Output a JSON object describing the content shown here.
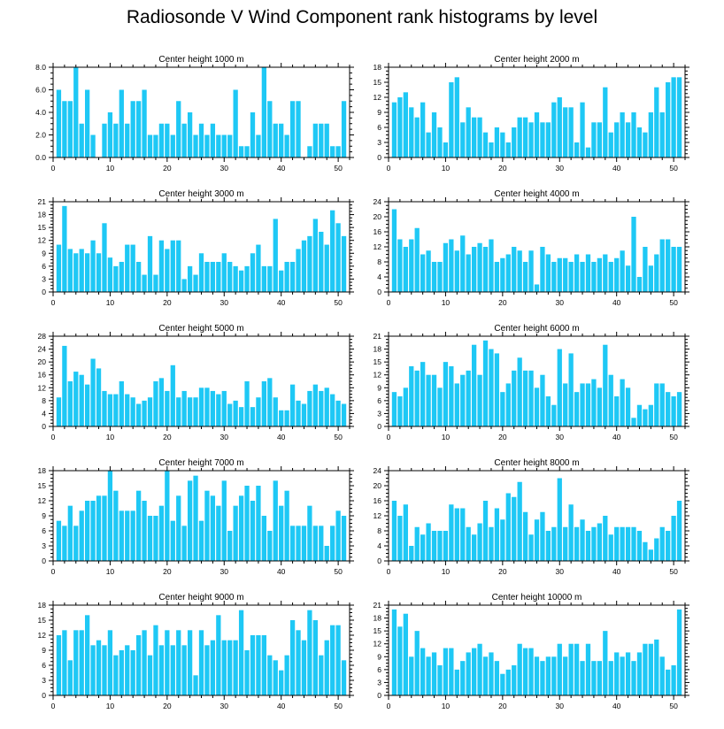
{
  "title": "Radiosonde V Wind Component rank histograms by level",
  "colors": {
    "bar": "#1ec8f5",
    "axis": "#000000",
    "background": "#ffffff"
  },
  "chart_data": [
    {
      "type": "bar",
      "title": "Center height 1000 m",
      "xlabel": "",
      "ylabel": "",
      "xlim": [
        0,
        52
      ],
      "ylim": [
        0,
        8
      ],
      "yticks": [
        0,
        2,
        4,
        6,
        8
      ],
      "ytick_labels": [
        "0.0",
        "2.0",
        "4.0",
        "6.0",
        "8.0"
      ],
      "xticks": [
        0,
        10,
        20,
        30,
        40,
        50
      ],
      "categories": [
        1,
        2,
        3,
        4,
        5,
        6,
        7,
        8,
        9,
        10,
        11,
        12,
        13,
        14,
        15,
        16,
        17,
        18,
        19,
        20,
        21,
        22,
        23,
        24,
        25,
        26,
        27,
        28,
        29,
        30,
        31,
        32,
        33,
        34,
        35,
        36,
        37,
        38,
        39,
        40,
        41,
        42,
        43,
        44,
        45,
        46,
        47,
        48,
        49,
        50,
        51
      ],
      "values": [
        6,
        5,
        5,
        8,
        3,
        6,
        2,
        0,
        3,
        4,
        3,
        6,
        3,
        5,
        5,
        6,
        2,
        2,
        3,
        3,
        2,
        5,
        3,
        4,
        2,
        3,
        2,
        3,
        2,
        2,
        2,
        6,
        1,
        1,
        4,
        2,
        8,
        5,
        3,
        3,
        2,
        5,
        5,
        0,
        1,
        3,
        3,
        3,
        1,
        1,
        5
      ]
    },
    {
      "type": "bar",
      "title": "Center height 2000 m",
      "xlabel": "",
      "ylabel": "",
      "xlim": [
        0,
        52
      ],
      "ylim": [
        0,
        18
      ],
      "yticks": [
        0,
        3,
        6,
        9,
        12,
        15,
        18
      ],
      "ytick_labels": [
        "0",
        "3",
        "6",
        "9",
        "12",
        "15",
        "18"
      ],
      "xticks": [
        0,
        10,
        20,
        30,
        40,
        50
      ],
      "categories": [
        1,
        2,
        3,
        4,
        5,
        6,
        7,
        8,
        9,
        10,
        11,
        12,
        13,
        14,
        15,
        16,
        17,
        18,
        19,
        20,
        21,
        22,
        23,
        24,
        25,
        26,
        27,
        28,
        29,
        30,
        31,
        32,
        33,
        34,
        35,
        36,
        37,
        38,
        39,
        40,
        41,
        42,
        43,
        44,
        45,
        46,
        47,
        48,
        49,
        50,
        51
      ],
      "values": [
        11,
        12,
        13,
        10,
        8,
        11,
        5,
        9,
        6,
        3,
        15,
        16,
        7,
        10,
        8,
        8,
        5,
        3,
        6,
        5,
        3,
        6,
        8,
        8,
        7,
        9,
        7,
        7,
        11,
        12,
        10,
        10,
        3,
        11,
        2,
        7,
        7,
        14,
        5,
        7,
        9,
        7,
        9,
        6,
        5,
        9,
        14,
        9,
        15,
        16,
        16
      ]
    },
    {
      "type": "bar",
      "title": "Center height 3000 m",
      "xlabel": "",
      "ylabel": "",
      "xlim": [
        0,
        52
      ],
      "ylim": [
        0,
        21
      ],
      "yticks": [
        0,
        3,
        6,
        9,
        12,
        15,
        18,
        21
      ],
      "ytick_labels": [
        "0",
        "3",
        "6",
        "9",
        "12",
        "15",
        "18",
        "21"
      ],
      "xticks": [
        0,
        10,
        20,
        30,
        40,
        50
      ],
      "categories": [
        1,
        2,
        3,
        4,
        5,
        6,
        7,
        8,
        9,
        10,
        11,
        12,
        13,
        14,
        15,
        16,
        17,
        18,
        19,
        20,
        21,
        22,
        23,
        24,
        25,
        26,
        27,
        28,
        29,
        30,
        31,
        32,
        33,
        34,
        35,
        36,
        37,
        38,
        39,
        40,
        41,
        42,
        43,
        44,
        45,
        46,
        47,
        48,
        49,
        50,
        51
      ],
      "values": [
        11,
        20,
        10,
        9,
        10,
        9,
        12,
        9,
        16,
        8,
        6,
        7,
        11,
        11,
        7,
        4,
        13,
        4,
        12,
        10,
        12,
        12,
        3,
        6,
        4,
        9,
        7,
        7,
        7,
        9,
        7,
        6,
        5,
        6,
        9,
        11,
        6,
        6,
        17,
        5,
        7,
        7,
        10,
        12,
        13,
        17,
        14,
        11,
        19,
        16,
        13
      ]
    },
    {
      "type": "bar",
      "title": "Center height 4000 m",
      "xlabel": "",
      "ylabel": "",
      "xlim": [
        0,
        52
      ],
      "ylim": [
        0,
        24
      ],
      "yticks": [
        0,
        4,
        8,
        12,
        16,
        20,
        24
      ],
      "ytick_labels": [
        "0",
        "4",
        "8",
        "12",
        "16",
        "20",
        "24"
      ],
      "xticks": [
        0,
        10,
        20,
        30,
        40,
        50
      ],
      "categories": [
        1,
        2,
        3,
        4,
        5,
        6,
        7,
        8,
        9,
        10,
        11,
        12,
        13,
        14,
        15,
        16,
        17,
        18,
        19,
        20,
        21,
        22,
        23,
        24,
        25,
        26,
        27,
        28,
        29,
        30,
        31,
        32,
        33,
        34,
        35,
        36,
        37,
        38,
        39,
        40,
        41,
        42,
        43,
        44,
        45,
        46,
        47,
        48,
        49,
        50,
        51
      ],
      "values": [
        22,
        14,
        12,
        14,
        17,
        10,
        11,
        8,
        8,
        13,
        14,
        11,
        15,
        10,
        12,
        13,
        12,
        14,
        8,
        9,
        10,
        12,
        11,
        8,
        11,
        2,
        12,
        10,
        8,
        9,
        9,
        8,
        10,
        8,
        10,
        8,
        9,
        10,
        8,
        9,
        11,
        7,
        20,
        4,
        12,
        7,
        10,
        14,
        14,
        12,
        12
      ]
    },
    {
      "type": "bar",
      "title": "Center height 5000 m",
      "xlabel": "",
      "ylabel": "",
      "xlim": [
        0,
        52
      ],
      "ylim": [
        0,
        28
      ],
      "yticks": [
        0,
        4,
        8,
        12,
        16,
        20,
        24,
        28
      ],
      "ytick_labels": [
        "0",
        "4",
        "8",
        "12",
        "16",
        "20",
        "24",
        "28"
      ],
      "xticks": [
        0,
        10,
        20,
        30,
        40,
        50
      ],
      "categories": [
        1,
        2,
        3,
        4,
        5,
        6,
        7,
        8,
        9,
        10,
        11,
        12,
        13,
        14,
        15,
        16,
        17,
        18,
        19,
        20,
        21,
        22,
        23,
        24,
        25,
        26,
        27,
        28,
        29,
        30,
        31,
        32,
        33,
        34,
        35,
        36,
        37,
        38,
        39,
        40,
        41,
        42,
        43,
        44,
        45,
        46,
        47,
        48,
        49,
        50,
        51
      ],
      "values": [
        9,
        25,
        14,
        17,
        16,
        13,
        21,
        18,
        11,
        10,
        10,
        14,
        10,
        9,
        7,
        8,
        9,
        14,
        15,
        11,
        19,
        9,
        11,
        9,
        9,
        12,
        12,
        11,
        10,
        11,
        7,
        8,
        6,
        14,
        6,
        9,
        14,
        15,
        9,
        5,
        5,
        13,
        8,
        7,
        11,
        13,
        11,
        12,
        10,
        8,
        7
      ]
    },
    {
      "type": "bar",
      "title": "Center height 6000 m",
      "xlabel": "",
      "ylabel": "",
      "xlim": [
        0,
        52
      ],
      "ylim": [
        0,
        21
      ],
      "yticks": [
        0,
        3,
        6,
        9,
        12,
        15,
        18,
        21
      ],
      "ytick_labels": [
        "0",
        "3",
        "6",
        "9",
        "12",
        "15",
        "18",
        "21"
      ],
      "xticks": [
        0,
        10,
        20,
        30,
        40,
        50
      ],
      "categories": [
        1,
        2,
        3,
        4,
        5,
        6,
        7,
        8,
        9,
        10,
        11,
        12,
        13,
        14,
        15,
        16,
        17,
        18,
        19,
        20,
        21,
        22,
        23,
        24,
        25,
        26,
        27,
        28,
        29,
        30,
        31,
        32,
        33,
        34,
        35,
        36,
        37,
        38,
        39,
        40,
        41,
        42,
        43,
        44,
        45,
        46,
        47,
        48,
        49,
        50,
        51
      ],
      "values": [
        8,
        7,
        9,
        14,
        13,
        15,
        12,
        12,
        9,
        15,
        14,
        10,
        12,
        13,
        19,
        12,
        20,
        18,
        17,
        8,
        10,
        13,
        16,
        13,
        13,
        9,
        12,
        7,
        5,
        18,
        10,
        17,
        8,
        10,
        10,
        11,
        9,
        19,
        12,
        7,
        11,
        9,
        2,
        5,
        4,
        5,
        10,
        10,
        8,
        7,
        8
      ]
    },
    {
      "type": "bar",
      "title": "Center height 7000 m",
      "xlabel": "",
      "ylabel": "",
      "xlim": [
        0,
        52
      ],
      "ylim": [
        0,
        18
      ],
      "yticks": [
        0,
        3,
        6,
        9,
        12,
        15,
        18
      ],
      "ytick_labels": [
        "0",
        "3",
        "6",
        "9",
        "12",
        "15",
        "18"
      ],
      "xticks": [
        0,
        10,
        20,
        30,
        40,
        50
      ],
      "categories": [
        1,
        2,
        3,
        4,
        5,
        6,
        7,
        8,
        9,
        10,
        11,
        12,
        13,
        14,
        15,
        16,
        17,
        18,
        19,
        20,
        21,
        22,
        23,
        24,
        25,
        26,
        27,
        28,
        29,
        30,
        31,
        32,
        33,
        34,
        35,
        36,
        37,
        38,
        39,
        40,
        41,
        42,
        43,
        44,
        45,
        46,
        47,
        48,
        49,
        50,
        51
      ],
      "values": [
        8,
        7,
        11,
        7,
        10,
        12,
        12,
        13,
        13,
        18,
        14,
        10,
        10,
        10,
        14,
        12,
        9,
        9,
        11,
        18,
        8,
        13,
        7,
        16,
        17,
        8,
        14,
        13,
        11,
        16,
        6,
        11,
        13,
        15,
        12,
        15,
        9,
        6,
        16,
        11,
        14,
        7,
        7,
        7,
        11,
        7,
        7,
        3,
        7,
        10,
        9
      ]
    },
    {
      "type": "bar",
      "title": "Center height 8000 m",
      "xlabel": "",
      "ylabel": "",
      "xlim": [
        0,
        52
      ],
      "ylim": [
        0,
        24
      ],
      "yticks": [
        0,
        4,
        8,
        12,
        16,
        20,
        24
      ],
      "ytick_labels": [
        "0",
        "4",
        "8",
        "12",
        "16",
        "20",
        "24"
      ],
      "xticks": [
        0,
        10,
        20,
        30,
        40,
        50
      ],
      "categories": [
        1,
        2,
        3,
        4,
        5,
        6,
        7,
        8,
        9,
        10,
        11,
        12,
        13,
        14,
        15,
        16,
        17,
        18,
        19,
        20,
        21,
        22,
        23,
        24,
        25,
        26,
        27,
        28,
        29,
        30,
        31,
        32,
        33,
        34,
        35,
        36,
        37,
        38,
        39,
        40,
        41,
        42,
        43,
        44,
        45,
        46,
        47,
        48,
        49,
        50,
        51
      ],
      "values": [
        16,
        12,
        15,
        4,
        9,
        7,
        10,
        8,
        8,
        8,
        15,
        14,
        14,
        9,
        7,
        10,
        16,
        9,
        14,
        11,
        18,
        17,
        21,
        13,
        7,
        11,
        13,
        8,
        9,
        22,
        9,
        15,
        9,
        11,
        8,
        9,
        10,
        12,
        7,
        9,
        9,
        9,
        9,
        8,
        5,
        3,
        6,
        9,
        8,
        12,
        16
      ]
    },
    {
      "type": "bar",
      "title": "Center height 9000 m",
      "xlabel": "",
      "ylabel": "",
      "xlim": [
        0,
        52
      ],
      "ylim": [
        0,
        18
      ],
      "yticks": [
        0,
        3,
        6,
        9,
        12,
        15,
        18
      ],
      "ytick_labels": [
        "0",
        "3",
        "6",
        "9",
        "12",
        "15",
        "18"
      ],
      "xticks": [
        0,
        10,
        20,
        30,
        40,
        50
      ],
      "categories": [
        1,
        2,
        3,
        4,
        5,
        6,
        7,
        8,
        9,
        10,
        11,
        12,
        13,
        14,
        15,
        16,
        17,
        18,
        19,
        20,
        21,
        22,
        23,
        24,
        25,
        26,
        27,
        28,
        29,
        30,
        31,
        32,
        33,
        34,
        35,
        36,
        37,
        38,
        39,
        40,
        41,
        42,
        43,
        44,
        45,
        46,
        47,
        48,
        49,
        50,
        51
      ],
      "values": [
        12,
        13,
        7,
        13,
        13,
        16,
        10,
        11,
        10,
        13,
        8,
        9,
        10,
        9,
        12,
        13,
        8,
        14,
        10,
        13,
        10,
        13,
        10,
        13,
        4,
        13,
        10,
        11,
        16,
        11,
        11,
        11,
        17,
        9,
        12,
        12,
        12,
        8,
        7,
        5,
        8,
        15,
        13,
        11,
        17,
        15,
        8,
        11,
        14,
        14,
        7
      ]
    },
    {
      "type": "bar",
      "title": "Center height 10000 m",
      "xlabel": "",
      "ylabel": "",
      "xlim": [
        0,
        52
      ],
      "ylim": [
        0,
        21
      ],
      "yticks": [
        0,
        3,
        6,
        9,
        12,
        15,
        18,
        21
      ],
      "ytick_labels": [
        "0",
        "3",
        "6",
        "9",
        "12",
        "15",
        "18",
        "21"
      ],
      "xticks": [
        0,
        10,
        20,
        30,
        40,
        50
      ],
      "categories": [
        1,
        2,
        3,
        4,
        5,
        6,
        7,
        8,
        9,
        10,
        11,
        12,
        13,
        14,
        15,
        16,
        17,
        18,
        19,
        20,
        21,
        22,
        23,
        24,
        25,
        26,
        27,
        28,
        29,
        30,
        31,
        32,
        33,
        34,
        35,
        36,
        37,
        38,
        39,
        40,
        41,
        42,
        43,
        44,
        45,
        46,
        47,
        48,
        49,
        50,
        51
      ],
      "values": [
        20,
        16,
        19,
        9,
        15,
        11,
        9,
        10,
        7,
        11,
        11,
        6,
        8,
        10,
        11,
        12,
        9,
        10,
        8,
        5,
        6,
        7,
        12,
        11,
        11,
        9,
        8,
        9,
        9,
        12,
        9,
        12,
        12,
        8,
        12,
        8,
        8,
        15,
        8,
        10,
        9,
        10,
        8,
        10,
        12,
        12,
        13,
        9,
        6,
        7,
        20
      ]
    }
  ]
}
